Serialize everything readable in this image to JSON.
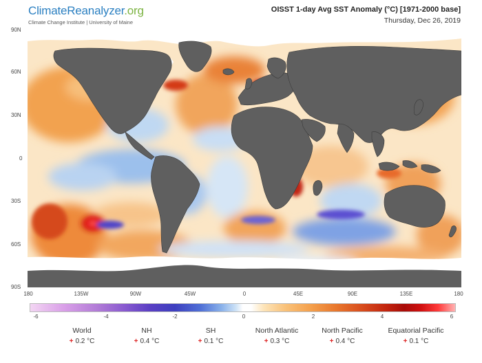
{
  "header": {
    "brand_part1": "ClimateReanalyzer",
    "brand_part2": ".org",
    "institution": "Climate Change Institute | University of Maine",
    "title": "OISST 1-day Avg SST Anomaly (°C) [1971-2000 base]",
    "date": "Thursday, Dec 26, 2019"
  },
  "map": {
    "lat_labels": [
      "90N",
      "60N",
      "30N",
      "0",
      "30S",
      "60S",
      "90S"
    ],
    "lon_labels": [
      "180",
      "135W",
      "90W",
      "45W",
      "0",
      "45E",
      "90E",
      "135E",
      "180"
    ],
    "land_color": "#5f5f5f",
    "sea_ice_color": "#ffffff",
    "warm_color": "#f4a04c",
    "cool_color": "#89b1ea"
  },
  "colorbar": {
    "ticks": [
      "-6",
      "-4",
      "-2",
      "0",
      "2",
      "4",
      "6"
    ],
    "min": -6,
    "max": 6
  },
  "stats": [
    {
      "name": "World",
      "value": "0.2 °C"
    },
    {
      "name": "NH",
      "value": "0.4 °C"
    },
    {
      "name": "SH",
      "value": "0.1 °C"
    },
    {
      "name": "North Atlantic",
      "value": "0.3 °C"
    },
    {
      "name": "North Pacific",
      "value": "0.4 °C"
    },
    {
      "name": "Equatorial Pacific",
      "value": "0.1 °C"
    }
  ],
  "stat_sign": "+"
}
